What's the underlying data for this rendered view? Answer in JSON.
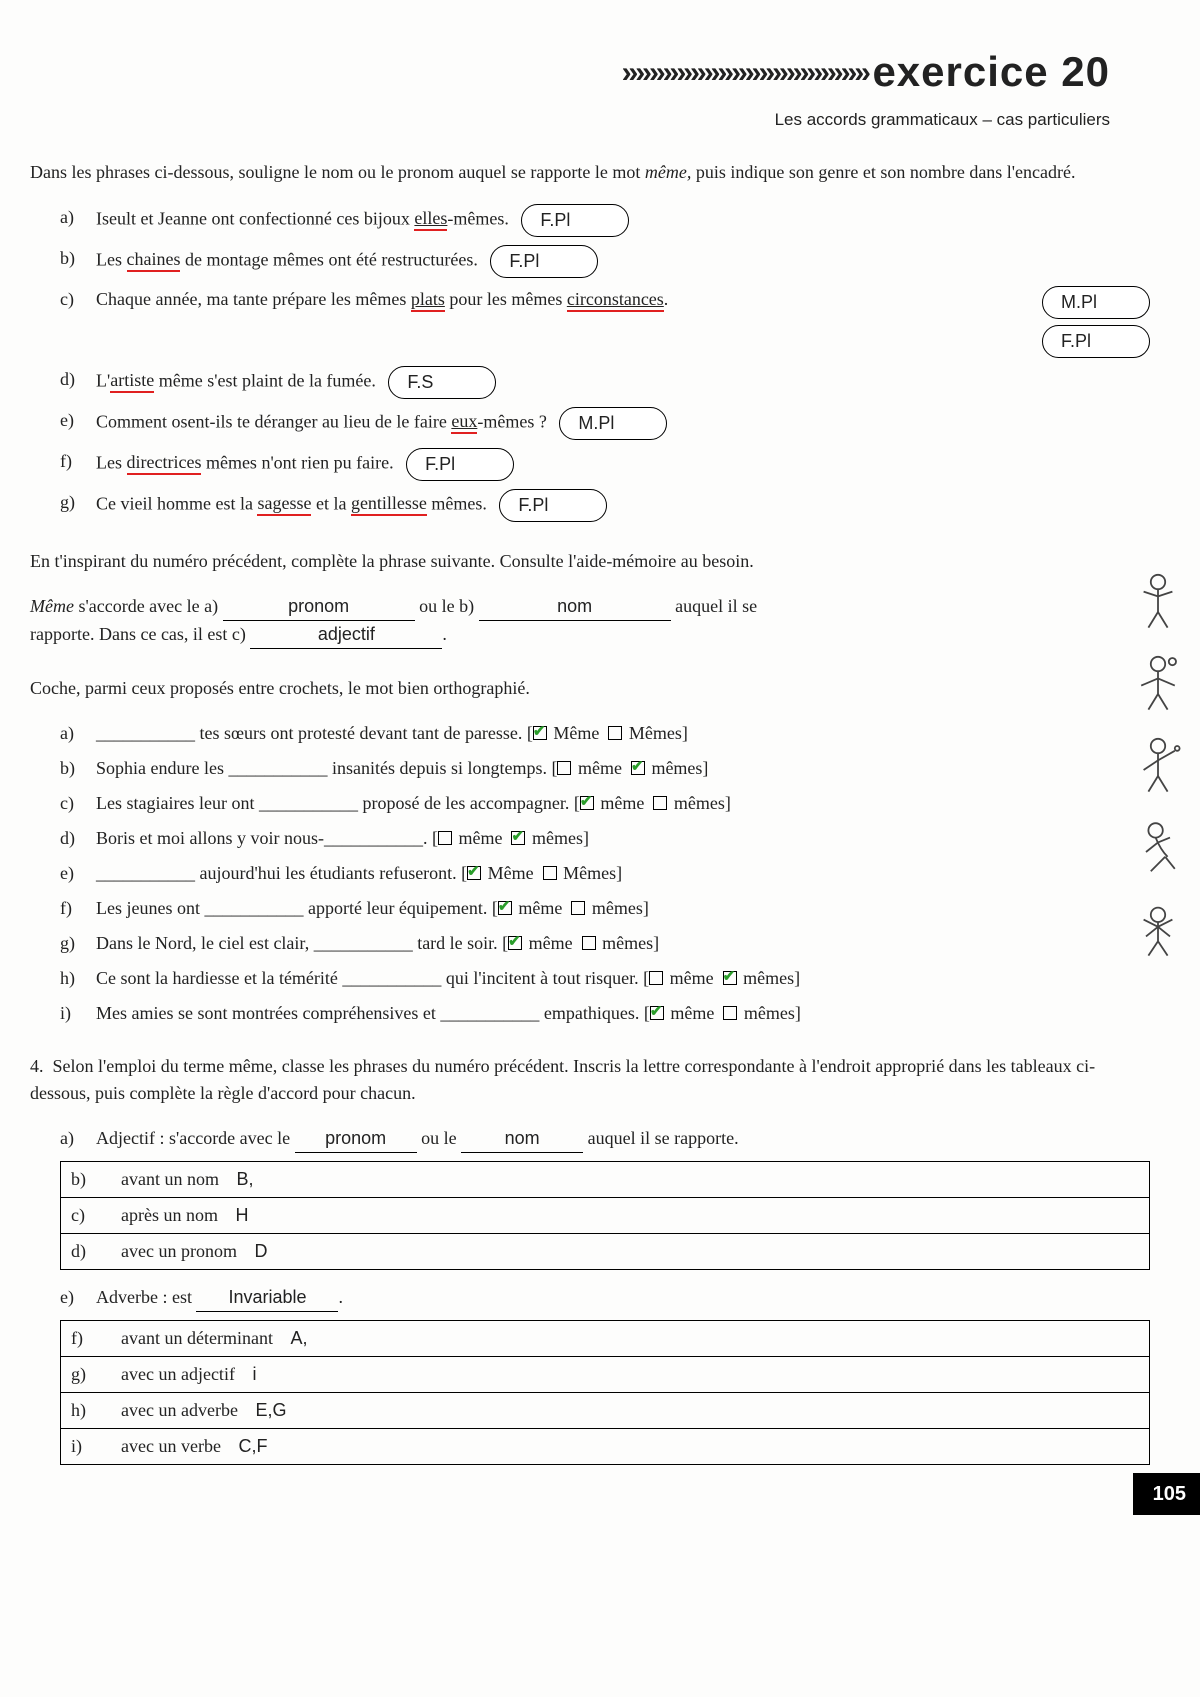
{
  "header": {
    "chevrons": "»»»»»»»»»»»»»»»»»»",
    "title": "exercice 20",
    "subtitle": "Les accords grammaticaux – cas particuliers"
  },
  "ex1": {
    "intro_a": "Dans les phrases ci-dessous, souligne le nom ou le pronom auquel se rapporte le mot ",
    "intro_em": "même,",
    "intro_b": " puis indique son genre et son nombre dans l'encadré.",
    "a": {
      "pre": "Iseult et Jeanne ont confectionné ces bijoux ",
      "u": "elles",
      "post": "-mêmes.",
      "ans": "F.Pl"
    },
    "b": {
      "pre": "Les ",
      "u": "chaines",
      "post": " de montage mêmes ont été restructurées.",
      "ans": "F.Pl"
    },
    "c": {
      "pre": "Chaque année, ma tante prépare les mêmes ",
      "u1": "plats",
      "mid": " pour les mêmes ",
      "u2": "circonstances",
      "post": ".",
      "ans1": "M.Pl",
      "ans2": "F.Pl"
    },
    "d": {
      "pre": "L'",
      "u": "artiste",
      "post": " même s'est plaint de la fumée.",
      "ans": "F.S"
    },
    "e": {
      "pre": "Comment osent-ils te déranger au lieu de le faire ",
      "u": "eux",
      "post": "-mêmes ?",
      "ans": "M.Pl"
    },
    "f": {
      "pre": "Les ",
      "u": "directrices",
      "post": " mêmes n'ont rien pu faire.",
      "ans": "F.Pl"
    },
    "g": {
      "pre": "Ce vieil homme est la ",
      "u1": "sagesse",
      "mid": " et la ",
      "u2": "gentillesse",
      "post": " mêmes.",
      "ans": "F.Pl"
    }
  },
  "ex2": {
    "intro": "En t'inspirant du numéro précédent, complète la phrase suivante. Consulte l'aide-mémoire au besoin.",
    "l1a": "Même",
    "l1b": " s'accorde avec le a) ",
    "a": "pronom",
    "l1c": " ou le b) ",
    "b": "nom",
    "l1d": " auquel il se",
    "l2a": "rapporte. Dans ce cas, il est c) ",
    "c": "adjectif",
    "l2b": "."
  },
  "ex3": {
    "intro": "Coche, parmi ceux proposés entre crochets, le mot bien orthographié.",
    "items": [
      {
        "l": "a)",
        "txt": "___________ tes sœurs ont protesté devant tant de paresse. [",
        "o1": "Même",
        "o2": "Mêmes",
        "c": 1,
        "end": "]"
      },
      {
        "l": "b)",
        "txt": "Sophia endure les ___________ insanités depuis si longtemps. [",
        "o1": "même",
        "o2": "mêmes",
        "c": 2,
        "end": "]"
      },
      {
        "l": "c)",
        "txt": "Les stagiaires leur ont ___________ proposé de les accompagner. [",
        "o1": "même",
        "o2": "mêmes",
        "c": 1,
        "end": "]"
      },
      {
        "l": "d)",
        "txt": "Boris et moi allons y voir nous-___________. [",
        "o1": "même",
        "o2": "mêmes",
        "c": 2,
        "end": "]"
      },
      {
        "l": "e)",
        "txt": "___________ aujourd'hui les étudiants refuseront. [",
        "o1": "Même",
        "o2": "Mêmes",
        "c": 1,
        "end": "]"
      },
      {
        "l": "f)",
        "txt": "Les jeunes ont ___________ apporté leur équipement. [",
        "o1": "même",
        "o2": "mêmes",
        "c": 1,
        "end": "]"
      },
      {
        "l": "g)",
        "txt": "Dans le Nord, le ciel est clair, ___________ tard le soir. [",
        "o1": "même",
        "o2": "mêmes",
        "c": 1,
        "end": "]"
      },
      {
        "l": "h)",
        "txt": "Ce sont la hardiesse et la témérité ___________ qui l'incitent à tout risquer. [",
        "o1": "même",
        "o2": "mêmes",
        "c": 2,
        "end": "]"
      },
      {
        "l": "i)",
        "txt": "Mes amies se sont montrées compréhensives et ___________ empathiques. [",
        "o1": "même",
        "o2": "mêmes",
        "c": 1,
        "end": "]"
      }
    ]
  },
  "ex4": {
    "num": "4.",
    "intro": "Selon l'emploi du terme même, classe les phrases du numéro précédent. Inscris la lettre correspondante à l'endroit approprié dans les tableaux ci-dessous, puis complète la règle d'accord pour chacun.",
    "a_pre": "Adjectif : s'accorde avec le ",
    "a1": "pronom",
    "a_mid": " ou le ",
    "a2": "nom",
    "a_post": " auquel il se rapporte.",
    "rows1": [
      {
        "l": "b)",
        "t": "avant un nom",
        "a": "B,"
      },
      {
        "l": "c)",
        "t": "après un nom",
        "a": "H"
      },
      {
        "l": "d)",
        "t": "avec un pronom",
        "a": "D"
      }
    ],
    "e_pre": "Adverbe : est ",
    "e": "Invariable",
    "e_post": ".",
    "rows2": [
      {
        "l": "f)",
        "t": "avant un déterminant",
        "a": "A,"
      },
      {
        "l": "g)",
        "t": "avec un adjectif",
        "a": "i"
      },
      {
        "l": "h)",
        "t": "avec un adverbe",
        "a": "E,G"
      },
      {
        "l": "i)",
        "t": "avec un verbe",
        "a": "C,F"
      }
    ]
  },
  "page": "105"
}
